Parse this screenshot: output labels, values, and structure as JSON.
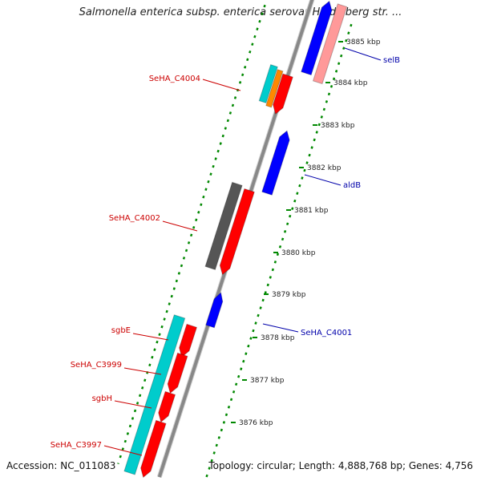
{
  "title": "Salmonella enterica subsp. enterica serovar Heidelberg str. ...",
  "footer": {
    "accession": "Accession: NC_011083",
    "stats": "Topology: circular; Length: 4,888,768 bp; Genes: 4,756"
  },
  "colors": {
    "forward_cds": "#ff0000",
    "reverse_cds": "#0000ff",
    "pseudo": "#ff9999",
    "rna": "#00cccc",
    "orange_feature": "#ff8800",
    "gray_feature": "#555555",
    "backbone": "#888888",
    "tick": "#008800",
    "forward_label": "#cc0000",
    "reverse_label": "#0000aa"
  },
  "ticks": [
    {
      "kbp": 3885,
      "label": "3885 kbp"
    },
    {
      "kbp": 3884,
      "label": "3884 kbp"
    },
    {
      "kbp": 3883,
      "label": "3883 kbp"
    },
    {
      "kbp": 3882,
      "label": "3882 kbp"
    },
    {
      "kbp": 3881,
      "label": "3881 kbp"
    },
    {
      "kbp": 3880,
      "label": "3880 kbp"
    },
    {
      "kbp": 3879,
      "label": "3879 kbp"
    },
    {
      "kbp": 3878,
      "label": "3878 kbp"
    },
    {
      "kbp": 3877,
      "label": "3877 kbp"
    },
    {
      "kbp": 3876,
      "label": "3876 kbp"
    }
  ],
  "labels": [
    {
      "text": "SeHA_C4004",
      "side": "left",
      "color": "forward_label"
    },
    {
      "text": "SeHA_C4002",
      "side": "left",
      "color": "forward_label"
    },
    {
      "text": "sgbE",
      "side": "left",
      "color": "forward_label"
    },
    {
      "text": "SeHA_C3999",
      "side": "left",
      "color": "forward_label"
    },
    {
      "text": "sgbH",
      "side": "left",
      "color": "forward_label"
    },
    {
      "text": "SeHA_C3997",
      "side": "left",
      "color": "forward_label"
    },
    {
      "text": "selB",
      "side": "right",
      "color": "reverse_label"
    },
    {
      "text": "aldB",
      "side": "right",
      "color": "reverse_label"
    },
    {
      "text": "SeHA_C4001",
      "side": "right",
      "color": "reverse_label"
    }
  ]
}
